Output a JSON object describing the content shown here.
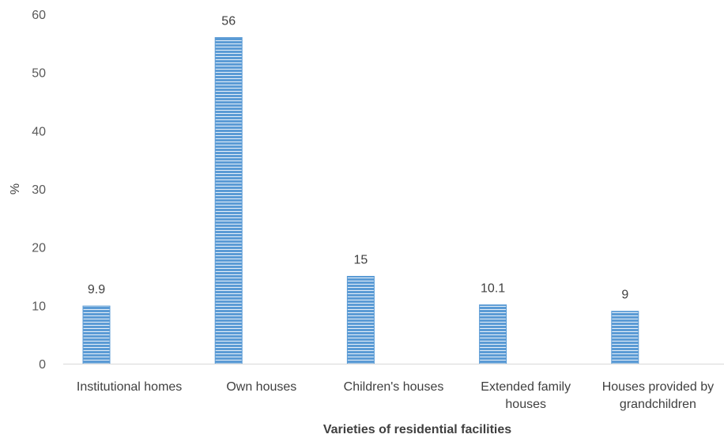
{
  "chart_data": {
    "type": "bar",
    "categories": [
      [
        "Institutional homes"
      ],
      [
        "Own houses"
      ],
      [
        "Children's houses"
      ],
      [
        "Extended family",
        "houses"
      ],
      [
        "Houses provided by",
        "grandchildren"
      ]
    ],
    "values": [
      9.9,
      56,
      15,
      10.1,
      9
    ],
    "data_labels": [
      "9.9",
      "56",
      "15",
      "10.1",
      "9"
    ],
    "xlabel": "Varieties of residential facilities",
    "ylabel": "%",
    "ylim": [
      0,
      60
    ],
    "yticks": [
      0,
      10,
      20,
      30,
      40,
      50,
      60
    ],
    "grid": false,
    "bar_color": "#5b9bd5",
    "stripe_color": "#ffffff"
  }
}
